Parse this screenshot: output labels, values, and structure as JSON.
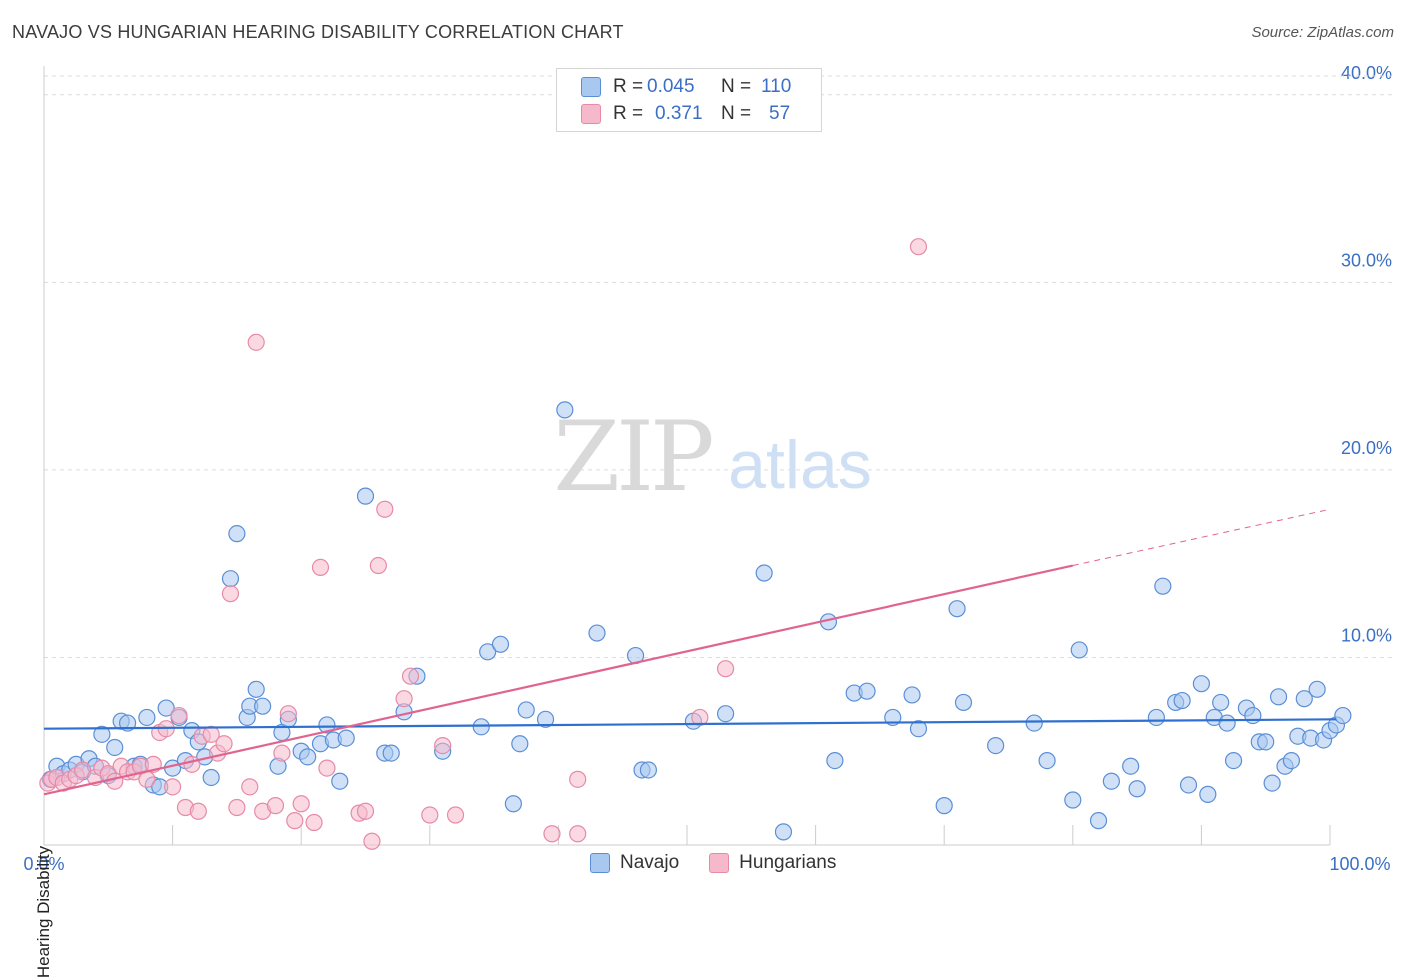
{
  "title": "NAVAJO VS HUNGARIAN HEARING DISABILITY CORRELATION CHART",
  "source": "Source: ZipAtlas.com",
  "watermark": {
    "zip": "ZIP",
    "atlas": "atlas"
  },
  "legend": {
    "rows": [
      {
        "r_label": "R =",
        "r_value": "0.045",
        "n_label": "N =",
        "n_value": "110"
      },
      {
        "r_label": "R =",
        "r_value": "0.371",
        "n_label": "N =",
        "n_value": "57"
      }
    ]
  },
  "bottom_legend": {
    "navajo": "Navajo",
    "hungarians": "Hungarians"
  },
  "colors": {
    "navajo_fill": "#a9c8f0",
    "navajo_stroke": "#5a8fd6",
    "navajo_line": "#2f6fcf",
    "hung_fill": "#f6b9cc",
    "hung_stroke": "#e68aa8",
    "hung_line": "#e0648f",
    "tick_label": "#3b6fc4",
    "grid": "#dcdcdc"
  },
  "chart_data": {
    "type": "scatter",
    "xlabel": "",
    "ylabel": "Hearing Disability",
    "xlim": [
      0,
      100
    ],
    "ylim": [
      0,
      41
    ],
    "x_tick_labels": [
      "0.0%",
      "100.0%"
    ],
    "y_ticks": [
      10,
      20,
      30,
      40
    ],
    "y_tick_labels": [
      "10.0%",
      "20.0%",
      "30.0%",
      "40.0%"
    ],
    "grid": "dashed horizontal",
    "series": [
      {
        "name": "Navajo",
        "points": [
          [
            0.5,
            3.5
          ],
          [
            1,
            4.2
          ],
          [
            1.5,
            3.8
          ],
          [
            2,
            4
          ],
          [
            2.5,
            4.3
          ],
          [
            3,
            3.9
          ],
          [
            3.5,
            4.6
          ],
          [
            4,
            4.2
          ],
          [
            4.5,
            5.9
          ],
          [
            5,
            3.7
          ],
          [
            5.5,
            5.2
          ],
          [
            6,
            6.6
          ],
          [
            6.5,
            6.5
          ],
          [
            7,
            4.2
          ],
          [
            7.5,
            4.3
          ],
          [
            8,
            6.8
          ],
          [
            8.5,
            3.2
          ],
          [
            9,
            3.1
          ],
          [
            9.5,
            7.3
          ],
          [
            10,
            4.1
          ],
          [
            10.5,
            6.8
          ],
          [
            11,
            4.5
          ],
          [
            11.5,
            6.1
          ],
          [
            12,
            5.5
          ],
          [
            12.5,
            4.7
          ],
          [
            13,
            3.6
          ],
          [
            14.5,
            14.2
          ],
          [
            15,
            16.6
          ],
          [
            15.8,
            6.8
          ],
          [
            16,
            7.4
          ],
          [
            16.5,
            8.3
          ],
          [
            17,
            7.4
          ],
          [
            18.2,
            4.2
          ],
          [
            18.5,
            6
          ],
          [
            19,
            6.7
          ],
          [
            20,
            5
          ],
          [
            20.5,
            4.7
          ],
          [
            21.5,
            5.4
          ],
          [
            22,
            6.4
          ],
          [
            22.5,
            5.6
          ],
          [
            23,
            3.4
          ],
          [
            23.5,
            5.7
          ],
          [
            25,
            18.6
          ],
          [
            26.5,
            4.9
          ],
          [
            27,
            4.9
          ],
          [
            28,
            7.1
          ],
          [
            29,
            9
          ],
          [
            31,
            5
          ],
          [
            34,
            6.3
          ],
          [
            34.5,
            10.3
          ],
          [
            35.5,
            10.7
          ],
          [
            36.5,
            2.2
          ],
          [
            37,
            5.4
          ],
          [
            37.5,
            7.2
          ],
          [
            39,
            6.7
          ],
          [
            40.5,
            23.2
          ],
          [
            43,
            11.3
          ],
          [
            46,
            10.1
          ],
          [
            46.5,
            4
          ],
          [
            47,
            4
          ],
          [
            50.5,
            6.6
          ],
          [
            53,
            7
          ],
          [
            56,
            14.5
          ],
          [
            57.5,
            0.7
          ],
          [
            61,
            11.9
          ],
          [
            61.5,
            4.5
          ],
          [
            63,
            8.1
          ],
          [
            64,
            8.2
          ],
          [
            66,
            6.8
          ],
          [
            67.5,
            8
          ],
          [
            68,
            6.2
          ],
          [
            70,
            2.1
          ],
          [
            71,
            12.6
          ],
          [
            71.5,
            7.6
          ],
          [
            74,
            5.3
          ],
          [
            77,
            6.5
          ],
          [
            78,
            4.5
          ],
          [
            80,
            2.4
          ],
          [
            80.5,
            10.4
          ],
          [
            82,
            1.3
          ],
          [
            83,
            3.4
          ],
          [
            84.5,
            4.2
          ],
          [
            85,
            3
          ],
          [
            86.5,
            6.8
          ],
          [
            87,
            13.8
          ],
          [
            88,
            7.6
          ],
          [
            88.5,
            7.7
          ],
          [
            89,
            3.2
          ],
          [
            90,
            8.6
          ],
          [
            90.5,
            2.7
          ],
          [
            91,
            6.8
          ],
          [
            91.5,
            7.6
          ],
          [
            92,
            6.5
          ],
          [
            92.5,
            4.5
          ],
          [
            93.5,
            7.3
          ],
          [
            94,
            6.9
          ],
          [
            94.5,
            5.5
          ],
          [
            95,
            5.5
          ],
          [
            95.5,
            3.3
          ],
          [
            96,
            7.9
          ],
          [
            96.5,
            4.2
          ],
          [
            97,
            4.5
          ],
          [
            97.5,
            5.8
          ],
          [
            98,
            7.8
          ],
          [
            98.5,
            5.7
          ],
          [
            99,
            8.3
          ],
          [
            99.5,
            5.6
          ],
          [
            100,
            6.1
          ],
          [
            100.5,
            6.4
          ],
          [
            101,
            6.9
          ]
        ],
        "trend": [
          [
            0,
            6.2
          ],
          [
            100.5,
            6.7
          ]
        ]
      },
      {
        "name": "Hungarians",
        "points": [
          [
            0.3,
            3.3
          ],
          [
            0.6,
            3.5
          ],
          [
            1,
            3.6
          ],
          [
            1.5,
            3.3
          ],
          [
            2,
            3.5
          ],
          [
            2.5,
            3.7
          ],
          [
            3,
            4
          ],
          [
            4,
            3.6
          ],
          [
            4.5,
            4.1
          ],
          [
            5,
            3.8
          ],
          [
            5.5,
            3.4
          ],
          [
            6,
            4.2
          ],
          [
            6.5,
            3.9
          ],
          [
            7,
            3.9
          ],
          [
            7.5,
            4.2
          ],
          [
            8,
            3.5
          ],
          [
            8.5,
            4.3
          ],
          [
            9,
            6
          ],
          [
            9.5,
            6.2
          ],
          [
            10,
            3.1
          ],
          [
            10.5,
            6.9
          ],
          [
            11,
            2
          ],
          [
            11.5,
            4.3
          ],
          [
            12,
            1.8
          ],
          [
            12.3,
            5.8
          ],
          [
            13,
            5.9
          ],
          [
            13.5,
            4.9
          ],
          [
            14,
            5.4
          ],
          [
            14.5,
            13.4
          ],
          [
            15,
            2
          ],
          [
            16,
            3.1
          ],
          [
            16.5,
            26.8
          ],
          [
            17,
            1.8
          ],
          [
            18,
            2.1
          ],
          [
            18.5,
            4.9
          ],
          [
            19,
            7
          ],
          [
            19.5,
            1.3
          ],
          [
            20,
            2.2
          ],
          [
            21,
            1.2
          ],
          [
            21.5,
            14.8
          ],
          [
            22,
            4.1
          ],
          [
            24.5,
            1.7
          ],
          [
            25,
            1.8
          ],
          [
            25.5,
            0.2
          ],
          [
            26,
            14.9
          ],
          [
            26.5,
            17.9
          ],
          [
            28,
            7.8
          ],
          [
            28.5,
            9
          ],
          [
            30,
            1.6
          ],
          [
            31,
            5.3
          ],
          [
            32,
            1.6
          ],
          [
            39.5,
            0.6
          ],
          [
            41.5,
            0.6
          ],
          [
            41.5,
            3.5
          ],
          [
            51,
            6.8
          ],
          [
            53,
            9.4
          ],
          [
            68,
            31.9
          ]
        ],
        "trend": [
          [
            0,
            2.7
          ],
          [
            80,
            14.9
          ]
        ],
        "trend_dashed": [
          [
            80,
            14.9
          ],
          [
            100,
            17.9
          ]
        ]
      }
    ]
  }
}
